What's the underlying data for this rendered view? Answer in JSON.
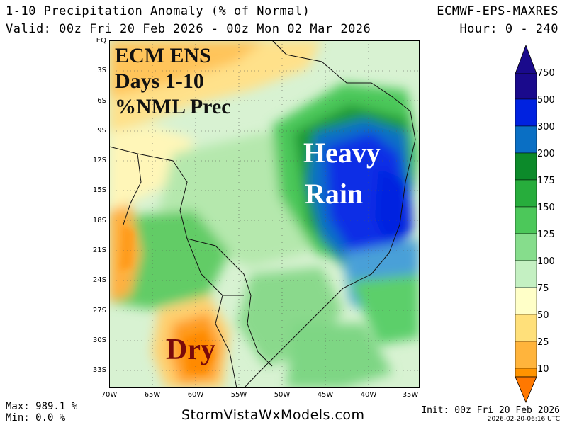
{
  "header": {
    "title": "1-10 Precipitation Anomaly (% of Normal)",
    "valid": "Valid: 00z Fri 20 Feb 2026 - 00z Mon 02 Mar 2026",
    "model": "ECMWF-EPS-MAXRES",
    "hour": "Hour: 0 - 240"
  },
  "map": {
    "lat_labels": [
      "EQ",
      "3S",
      "6S",
      "9S",
      "12S",
      "15S",
      "18S",
      "21S",
      "24S",
      "27S",
      "30S",
      "33S"
    ],
    "lon_labels": [
      "70W",
      "65W",
      "60W",
      "55W",
      "50W",
      "45W",
      "40W",
      "35W"
    ],
    "overlay": {
      "line1": "ECM ENS",
      "line2": "Days 1-10",
      "line3": "%NML Prec",
      "heavy": "Heavy",
      "rain": "Rain",
      "dry": "Dry"
    }
  },
  "legend": {
    "labels": [
      "750",
      "500",
      "300",
      "200",
      "175",
      "150",
      "125",
      "100",
      "75",
      "50",
      "25",
      "10"
    ],
    "colors": [
      "#1a0a8c",
      "#0022e0",
      "#0a6fc4",
      "#0c8a2a",
      "#27ad3c",
      "#4cc85a",
      "#86dd8c",
      "#c4f0c2",
      "#ffffc8",
      "#ffe07a",
      "#ffb43c",
      "#ff9400",
      "#ff7800"
    ]
  },
  "footer": {
    "max": "Max: 989.1 %",
    "min": "Min: 0.0 %",
    "site": "StormVistaWxModels.com",
    "init": "Init: 00z Fri 20 Feb 2026",
    "stamp": "2026-02-20-06:16 UTC"
  }
}
